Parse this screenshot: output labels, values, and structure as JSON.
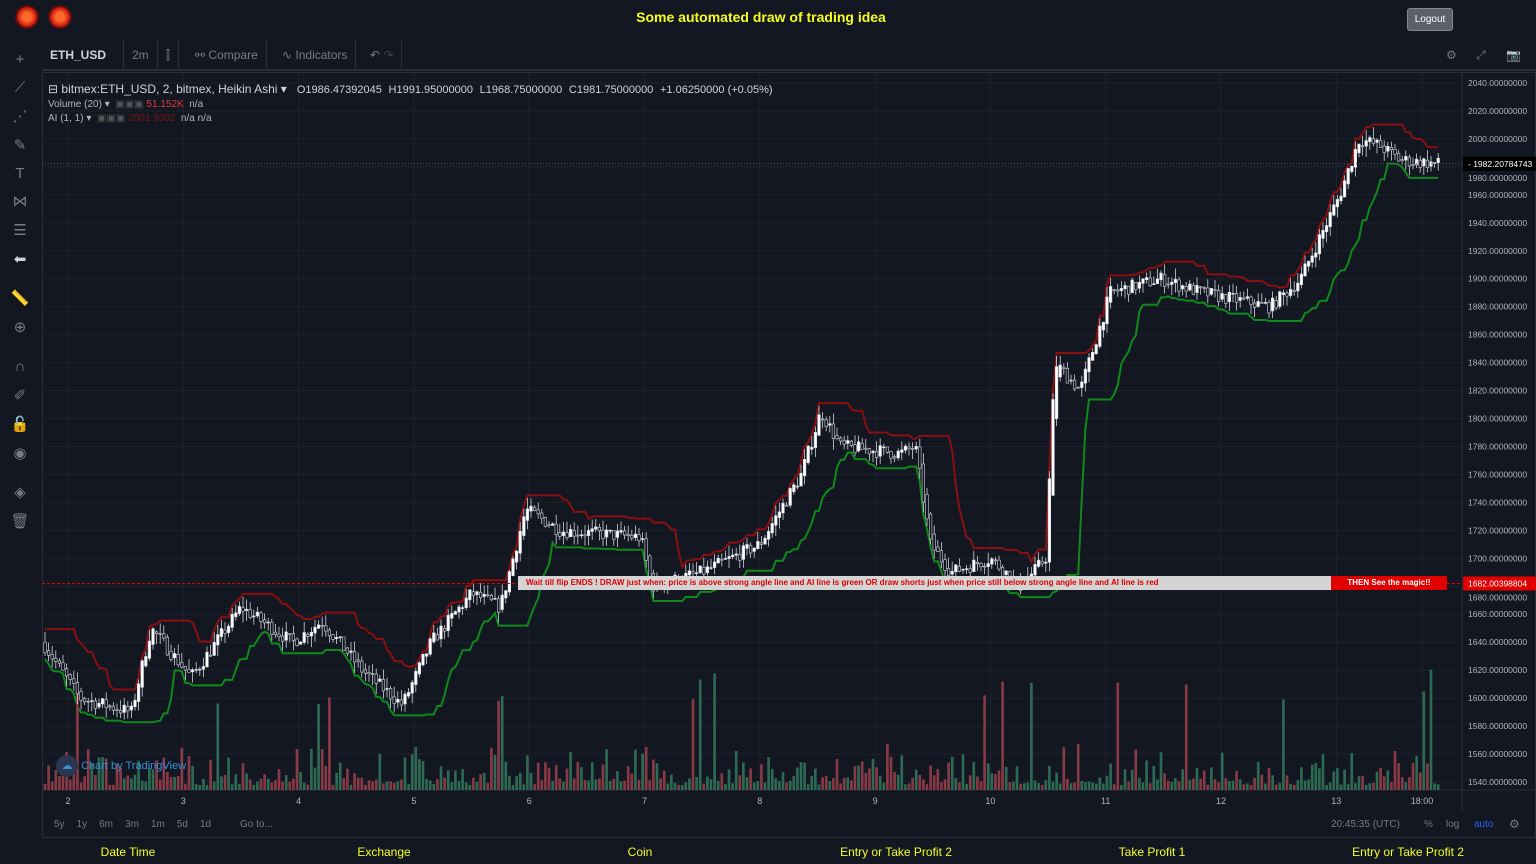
{
  "header": {
    "title": "Some automated draw of trading idea",
    "logout": "Logout"
  },
  "toolbar": {
    "symbol": "ETH_USD",
    "interval": "2m",
    "compare": "Compare",
    "indicators": "Indicators"
  },
  "legend": {
    "main": "bitmex:ETH_USD, 2, bitmex, Heikin Ashi",
    "open": "O1986.47392045",
    "high": "H1991.95000000",
    "low": "L1968.75000000",
    "close": "C1981.75000000",
    "change": "+1.06250000 (+0.05%)",
    "volume": "Volume (20)",
    "volume_val": "51.152K",
    "volume_na": "n/a",
    "ai": "AI (1, 1)",
    "ai_val": "2001.9302",
    "ai_na1": "n/a",
    "ai_na2": "n/a"
  },
  "banner": {
    "text": "Wait till flip ENDS  !   DRAW just when:  price is above strong angle line and AI line is green        OR        draw shorts just when price still below strong angle line and AI line is red",
    "magic": "THEN See the magic!!"
  },
  "watermark": "Chart by TradingView",
  "chart_data": {
    "type": "candlestick",
    "style": "Heikin Ashi",
    "symbol": "ETH_USD",
    "ylim": [
      1540,
      2040
    ],
    "y_ticks": [
      "2040.00000000",
      "2020.00000000",
      "2000.00000000",
      "1980.00000000",
      "1960.00000000",
      "1940.00000000",
      "1920.00000000",
      "1900.00000000",
      "1880.00000000",
      "1860.00000000",
      "1840.00000000",
      "1820.00000000",
      "1800.00000000",
      "1780.00000000",
      "1760.00000000",
      "1740.00000000",
      "1720.00000000",
      "1700.00000000",
      "1680.00000000",
      "1660.00000000",
      "1640.00000000",
      "1620.00000000",
      "1600.00000000",
      "1580.00000000",
      "1560.00000000",
      "1540.00000000"
    ],
    "x_ticks": [
      "2",
      "3",
      "4",
      "5",
      "6",
      "7",
      "8",
      "9",
      "10",
      "11",
      "12",
      "13",
      "18:00"
    ],
    "last_price": "1982.20784743",
    "line_price": "1682.00398804",
    "line_value": 1682.00398804,
    "price_path": [
      [
        1.78,
        1640
      ],
      [
        2.1,
        1600
      ],
      [
        2.55,
        1590
      ],
      [
        2.72,
        1650
      ],
      [
        3.07,
        1615
      ],
      [
        3.5,
        1665
      ],
      [
        3.95,
        1640
      ],
      [
        4.2,
        1655
      ],
      [
        4.55,
        1620
      ],
      [
        4.9,
        1595
      ],
      [
        5.15,
        1640
      ],
      [
        5.5,
        1675
      ],
      [
        5.75,
        1665
      ],
      [
        5.97,
        1735
      ],
      [
        6.27,
        1720
      ],
      [
        6.97,
        1715
      ],
      [
        7.06,
        1680
      ],
      [
        7.5,
        1690
      ],
      [
        8.0,
        1710
      ],
      [
        8.36,
        1760
      ],
      [
        8.53,
        1805
      ],
      [
        8.7,
        1780
      ],
      [
        9.22,
        1775
      ],
      [
        9.35,
        1780
      ],
      [
        9.48,
        1710
      ],
      [
        9.66,
        1690
      ],
      [
        10.0,
        1700
      ],
      [
        10.26,
        1680
      ],
      [
        10.48,
        1700
      ],
      [
        10.56,
        1840
      ],
      [
        10.78,
        1820
      ],
      [
        11.04,
        1890
      ],
      [
        11.48,
        1900
      ],
      [
        11.83,
        1890
      ],
      [
        12.43,
        1880
      ],
      [
        12.69,
        1900
      ],
      [
        13.03,
        1960
      ],
      [
        13.2,
        2000
      ],
      [
        13.38,
        1995
      ],
      [
        13.55,
        1985
      ],
      [
        13.9,
        1982
      ]
    ]
  },
  "bottom": {
    "ranges": [
      "5y",
      "1y",
      "6m",
      "3m",
      "1m",
      "5d",
      "1d"
    ],
    "goto": "Go to...",
    "time": "20:45:35 (UTC)",
    "pct": "%",
    "log": "log",
    "auto": "auto"
  },
  "footer": [
    "Date Time",
    "Exchange",
    "Coin",
    "Entry or Take Profit 2",
    "Take Profit 1",
    "Entry or Take Profit 2"
  ],
  "colors": {
    "up": "#ffffff",
    "down": "#131722",
    "ai_green": "#0f8a1a",
    "ai_red": "#8a0f0f",
    "vol_up": "#2e6b55",
    "vol_down": "#8a3a45",
    "accent": "#f5ff1f",
    "banner_red": "#e00000"
  }
}
